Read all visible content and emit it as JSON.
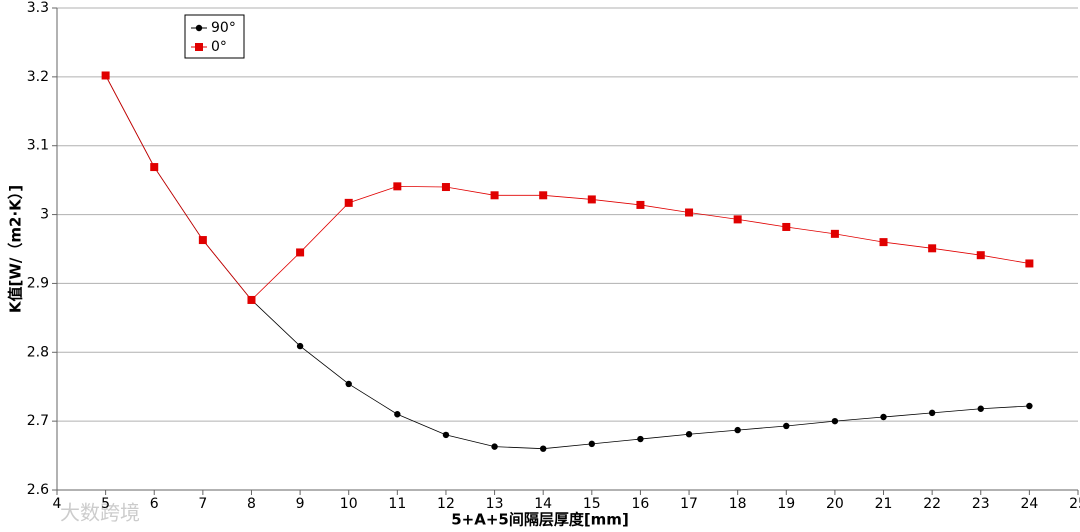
{
  "chart_data": {
    "type": "line",
    "x_label": "5+A+5间隔层厚度[mm]",
    "y_label": "K值[W/（m2·K）]",
    "x": [
      5,
      6,
      7,
      8,
      9,
      10,
      11,
      12,
      13,
      14,
      15,
      16,
      17,
      18,
      19,
      20,
      21,
      22,
      23,
      24
    ],
    "series": [
      {
        "name": "90°",
        "color": "#000000",
        "marker": "circle",
        "values": [
          3.202,
          3.069,
          2.963,
          2.876,
          2.809,
          2.754,
          2.71,
          2.68,
          2.663,
          2.66,
          2.667,
          2.674,
          2.681,
          2.687,
          2.693,
          2.7,
          2.706,
          2.712,
          2.718,
          2.722
        ]
      },
      {
        "name": "0°",
        "color": "#e00000",
        "marker": "square",
        "values": [
          3.202,
          3.069,
          2.963,
          2.876,
          2.945,
          3.017,
          3.041,
          3.04,
          3.028,
          3.028,
          3.022,
          3.014,
          3.003,
          2.993,
          2.982,
          2.972,
          2.96,
          2.951,
          2.941,
          2.929
        ]
      }
    ],
    "xlim": [
      4,
      25
    ],
    "xticks": [
      4,
      5,
      6,
      7,
      8,
      9,
      10,
      11,
      12,
      13,
      14,
      15,
      16,
      17,
      18,
      19,
      20,
      21,
      22,
      23,
      24,
      25
    ],
    "ylim": [
      2.6,
      3.3
    ],
    "yticks": [
      2.6,
      2.7,
      2.8,
      2.9,
      3,
      3.1,
      3.2,
      3.3
    ],
    "grid": true,
    "legend": "upper-left"
  },
  "watermark": "大数跨境"
}
